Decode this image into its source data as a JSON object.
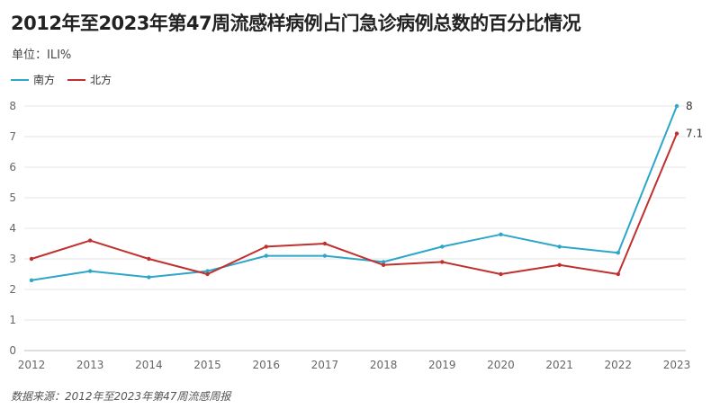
{
  "chart_data": {
    "type": "line",
    "title": "2012年至2023年第47周流感样病例占门急诊病例总数的百分比情况",
    "unit_label": "单位：ILI%",
    "source": "数据来源：2012年至2023年第47周流感周报",
    "x": [
      "2012",
      "2013",
      "2014",
      "2015",
      "2016",
      "2017",
      "2018",
      "2019",
      "2020",
      "2021",
      "2022",
      "2023"
    ],
    "ylim": [
      0,
      8
    ],
    "yticks": [
      "0",
      "1",
      "2",
      "3",
      "4",
      "5",
      "6",
      "7",
      "8"
    ],
    "grid": true,
    "legend_position": "top-left",
    "series": [
      {
        "name": "南方",
        "color": "#2ea6c9",
        "values": [
          2.3,
          2.6,
          2.4,
          2.6,
          3.1,
          3.1,
          2.9,
          3.4,
          3.8,
          3.4,
          3.2,
          8.0
        ],
        "end_label": "8"
      },
      {
        "name": "北方",
        "color": "#c0302e",
        "values": [
          3.0,
          3.6,
          3.0,
          2.5,
          3.4,
          3.5,
          2.8,
          2.9,
          2.5,
          2.8,
          2.5,
          7.1
        ],
        "end_label": "7.1"
      }
    ]
  }
}
